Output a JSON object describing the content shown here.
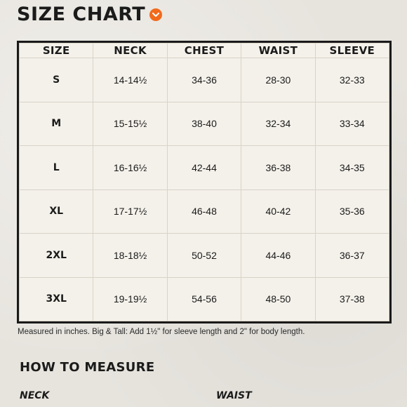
{
  "header": {
    "title": "SIZE CHART",
    "badge_icon": "chevron-down-icon",
    "badge_color": "#f26a1b"
  },
  "table": {
    "columns": [
      "SIZE",
      "NECK",
      "CHEST",
      "WAIST",
      "SLEEVE"
    ],
    "rows": [
      [
        "S",
        "14-14½",
        "34-36",
        "28-30",
        "32-33"
      ],
      [
        "M",
        "15-15½",
        "38-40",
        "32-34",
        "33-34"
      ],
      [
        "L",
        "16-16½",
        "42-44",
        "36-38",
        "34-35"
      ],
      [
        "XL",
        "17-17½",
        "46-48",
        "40-42",
        "35-36"
      ],
      [
        "2XL",
        "18-18½",
        "50-52",
        "44-46",
        "36-37"
      ],
      [
        "3XL",
        "19-19½",
        "54-56",
        "48-50",
        "37-38"
      ]
    ]
  },
  "note": "Measured in inches. Big & Tall: Add 1½\" for sleeve length and 2\" for body length.",
  "how_to_measure": {
    "title": "HOW TO MEASURE",
    "neck_label": "NECK",
    "waist_label": "WAIST"
  }
}
